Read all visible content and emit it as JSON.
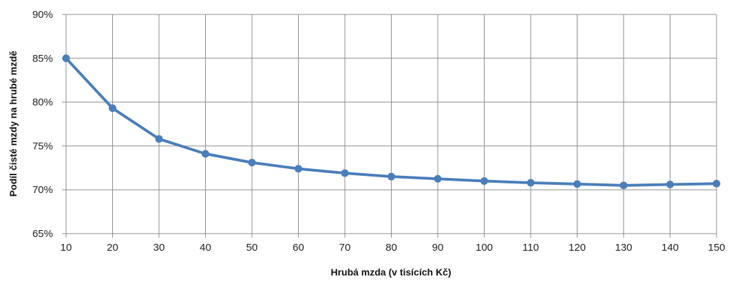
{
  "chart_data": {
    "type": "line",
    "xlabel": "Hrubá mzda (v tisících Kč)",
    "ylabel": "Podíl čisté mzdy na hrubé mzdě",
    "x": [
      10,
      20,
      30,
      40,
      50,
      60,
      70,
      80,
      90,
      100,
      110,
      120,
      130,
      140,
      150
    ],
    "xlim": [
      10,
      150
    ],
    "x_ticks": [
      "10",
      "20",
      "30",
      "40",
      "50",
      "60",
      "70",
      "80",
      "90",
      "100",
      "110",
      "120",
      "130",
      "140",
      "150"
    ],
    "ylim": [
      65,
      90
    ],
    "y_ticks": [
      65,
      70,
      75,
      80,
      85,
      90
    ],
    "y_tick_labels": [
      "65%",
      "70%",
      "75%",
      "80%",
      "85%",
      "90%"
    ],
    "grid": true,
    "legend": "none",
    "series": [
      {
        "values": [
          85.0,
          79.3,
          75.8,
          74.1,
          73.1,
          72.4,
          71.9,
          71.5,
          71.25,
          71.0,
          70.8,
          70.65,
          70.5,
          70.6,
          70.7
        ],
        "color": "#4a7ebb"
      }
    ],
    "colors": {
      "grid": "#8c8c8c",
      "axis": "#8c8c8c",
      "line": "#4a7ebb"
    }
  }
}
